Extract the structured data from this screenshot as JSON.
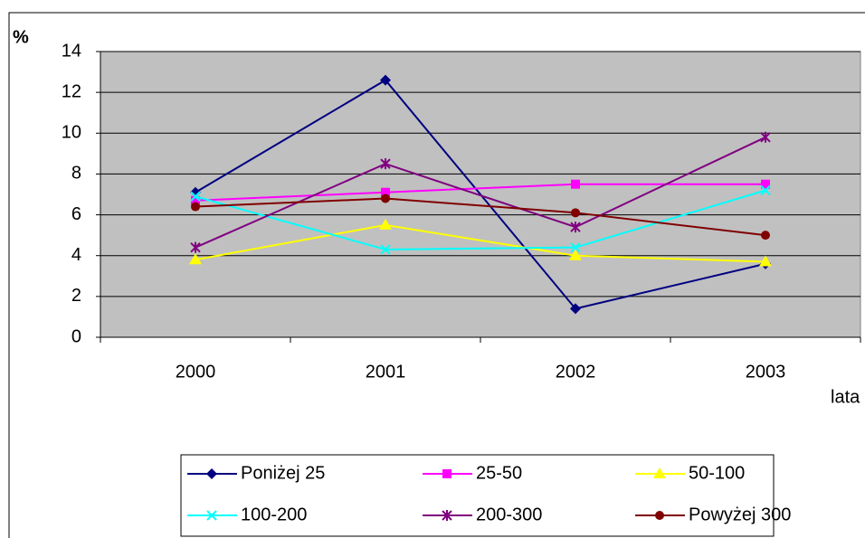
{
  "chart_data": {
    "type": "line",
    "y_label": "%",
    "x_label": "lata",
    "categories": [
      "2000",
      "2001",
      "2002",
      "2003"
    ],
    "series": [
      {
        "name": "Poniżej 25",
        "color": "#000080",
        "marker": "diamond",
        "values": [
          7.1,
          12.6,
          1.4,
          3.6
        ]
      },
      {
        "name": "25-50",
        "color": "#FF00FF",
        "marker": "square",
        "values": [
          6.7,
          7.1,
          7.5,
          7.5
        ]
      },
      {
        "name": "50-100",
        "color": "#FFFF00",
        "marker": "triangle",
        "values": [
          3.8,
          5.5,
          4.0,
          3.7
        ]
      },
      {
        "name": "100-200",
        "color": "#00FFFF",
        "marker": "x",
        "values": [
          6.9,
          4.3,
          4.4,
          7.2
        ]
      },
      {
        "name": "200-300",
        "color": "#800080",
        "marker": "star",
        "values": [
          4.4,
          8.5,
          5.4,
          9.8
        ]
      },
      {
        "name": "Powyżej 300",
        "color": "#800000",
        "marker": "circle",
        "values": [
          6.4,
          6.8,
          6.1,
          5.0
        ]
      }
    ],
    "ylim": [
      0,
      14
    ],
    "yticks": [
      0,
      2,
      4,
      6,
      8,
      10,
      12,
      14
    ],
    "grid": true,
    "legend": "bottom"
  }
}
